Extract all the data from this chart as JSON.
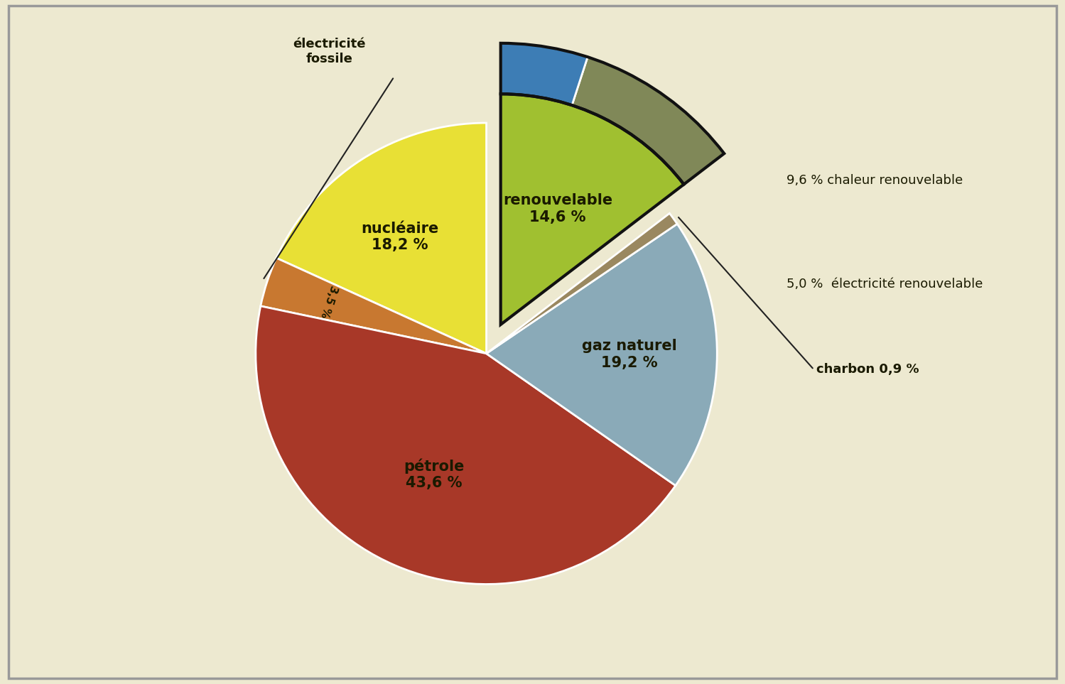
{
  "background_color": "#ede9d0",
  "segments_main": [
    {
      "label": "nucléaire",
      "value": 18.2,
      "color": "#e8e035"
    },
    {
      "label": "électricité fossile",
      "value": 3.5,
      "color": "#c87830"
    },
    {
      "label": "pétrole",
      "value": 43.6,
      "color": "#a83828"
    },
    {
      "label": "gaz naturel",
      "value": 19.2,
      "color": "#8aaab8"
    },
    {
      "label": "charbon",
      "value": 0.9,
      "color": "#9a8860"
    },
    {
      "label": "renouvelable",
      "value": 14.6,
      "color": "#a0c030"
    }
  ],
  "outer_ring": [
    {
      "label": "chaleur renouvelable",
      "value": 9.6,
      "color": "#808858"
    },
    {
      "label": "électricité renouvelable",
      "value": 5.0,
      "color": "#3d7db5"
    }
  ],
  "explode_idx": 5,
  "explode_dist": 0.14,
  "R": 1.0,
  "R_outer": 1.22,
  "startangle": 90,
  "label_fontsize": 15,
  "annot_fontsize": 13,
  "ef_pct_fontsize": 11
}
